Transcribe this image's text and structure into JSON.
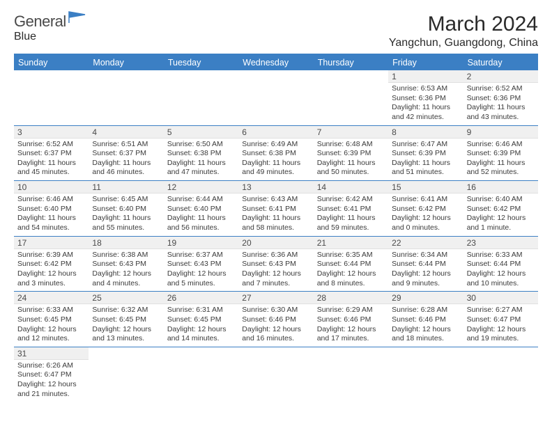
{
  "logo": {
    "text1": "General",
    "text2": "Blue",
    "flag_color": "#3b7fc4"
  },
  "header": {
    "month": "March 2024",
    "location": "Yangchun, Guangdong, China"
  },
  "colors": {
    "header_bg": "#3b7fc4",
    "header_text": "#ffffff",
    "divider": "#3b7fc4",
    "dayband": "#f0f0f0"
  },
  "days": [
    "Sunday",
    "Monday",
    "Tuesday",
    "Wednesday",
    "Thursday",
    "Friday",
    "Saturday"
  ],
  "blank_start": 5,
  "entries": [
    {
      "d": "1",
      "sr": "6:53 AM",
      "ss": "6:36 PM",
      "dl": "11 hours and 42 minutes."
    },
    {
      "d": "2",
      "sr": "6:52 AM",
      "ss": "6:36 PM",
      "dl": "11 hours and 43 minutes."
    },
    {
      "d": "3",
      "sr": "6:52 AM",
      "ss": "6:37 PM",
      "dl": "11 hours and 45 minutes."
    },
    {
      "d": "4",
      "sr": "6:51 AM",
      "ss": "6:37 PM",
      "dl": "11 hours and 46 minutes."
    },
    {
      "d": "5",
      "sr": "6:50 AM",
      "ss": "6:38 PM",
      "dl": "11 hours and 47 minutes."
    },
    {
      "d": "6",
      "sr": "6:49 AM",
      "ss": "6:38 PM",
      "dl": "11 hours and 49 minutes."
    },
    {
      "d": "7",
      "sr": "6:48 AM",
      "ss": "6:39 PM",
      "dl": "11 hours and 50 minutes."
    },
    {
      "d": "8",
      "sr": "6:47 AM",
      "ss": "6:39 PM",
      "dl": "11 hours and 51 minutes."
    },
    {
      "d": "9",
      "sr": "6:46 AM",
      "ss": "6:39 PM",
      "dl": "11 hours and 52 minutes."
    },
    {
      "d": "10",
      "sr": "6:46 AM",
      "ss": "6:40 PM",
      "dl": "11 hours and 54 minutes."
    },
    {
      "d": "11",
      "sr": "6:45 AM",
      "ss": "6:40 PM",
      "dl": "11 hours and 55 minutes."
    },
    {
      "d": "12",
      "sr": "6:44 AM",
      "ss": "6:40 PM",
      "dl": "11 hours and 56 minutes."
    },
    {
      "d": "13",
      "sr": "6:43 AM",
      "ss": "6:41 PM",
      "dl": "11 hours and 58 minutes."
    },
    {
      "d": "14",
      "sr": "6:42 AM",
      "ss": "6:41 PM",
      "dl": "11 hours and 59 minutes."
    },
    {
      "d": "15",
      "sr": "6:41 AM",
      "ss": "6:42 PM",
      "dl": "12 hours and 0 minutes."
    },
    {
      "d": "16",
      "sr": "6:40 AM",
      "ss": "6:42 PM",
      "dl": "12 hours and 1 minute."
    },
    {
      "d": "17",
      "sr": "6:39 AM",
      "ss": "6:42 PM",
      "dl": "12 hours and 3 minutes."
    },
    {
      "d": "18",
      "sr": "6:38 AM",
      "ss": "6:43 PM",
      "dl": "12 hours and 4 minutes."
    },
    {
      "d": "19",
      "sr": "6:37 AM",
      "ss": "6:43 PM",
      "dl": "12 hours and 5 minutes."
    },
    {
      "d": "20",
      "sr": "6:36 AM",
      "ss": "6:43 PM",
      "dl": "12 hours and 7 minutes."
    },
    {
      "d": "21",
      "sr": "6:35 AM",
      "ss": "6:44 PM",
      "dl": "12 hours and 8 minutes."
    },
    {
      "d": "22",
      "sr": "6:34 AM",
      "ss": "6:44 PM",
      "dl": "12 hours and 9 minutes."
    },
    {
      "d": "23",
      "sr": "6:33 AM",
      "ss": "6:44 PM",
      "dl": "12 hours and 10 minutes."
    },
    {
      "d": "24",
      "sr": "6:33 AM",
      "ss": "6:45 PM",
      "dl": "12 hours and 12 minutes."
    },
    {
      "d": "25",
      "sr": "6:32 AM",
      "ss": "6:45 PM",
      "dl": "12 hours and 13 minutes."
    },
    {
      "d": "26",
      "sr": "6:31 AM",
      "ss": "6:45 PM",
      "dl": "12 hours and 14 minutes."
    },
    {
      "d": "27",
      "sr": "6:30 AM",
      "ss": "6:46 PM",
      "dl": "12 hours and 16 minutes."
    },
    {
      "d": "28",
      "sr": "6:29 AM",
      "ss": "6:46 PM",
      "dl": "12 hours and 17 minutes."
    },
    {
      "d": "29",
      "sr": "6:28 AM",
      "ss": "6:46 PM",
      "dl": "12 hours and 18 minutes."
    },
    {
      "d": "30",
      "sr": "6:27 AM",
      "ss": "6:47 PM",
      "dl": "12 hours and 19 minutes."
    },
    {
      "d": "31",
      "sr": "6:26 AM",
      "ss": "6:47 PM",
      "dl": "12 hours and 21 minutes."
    }
  ],
  "labels": {
    "sunrise": "Sunrise:",
    "sunset": "Sunset:",
    "daylight": "Daylight:"
  }
}
